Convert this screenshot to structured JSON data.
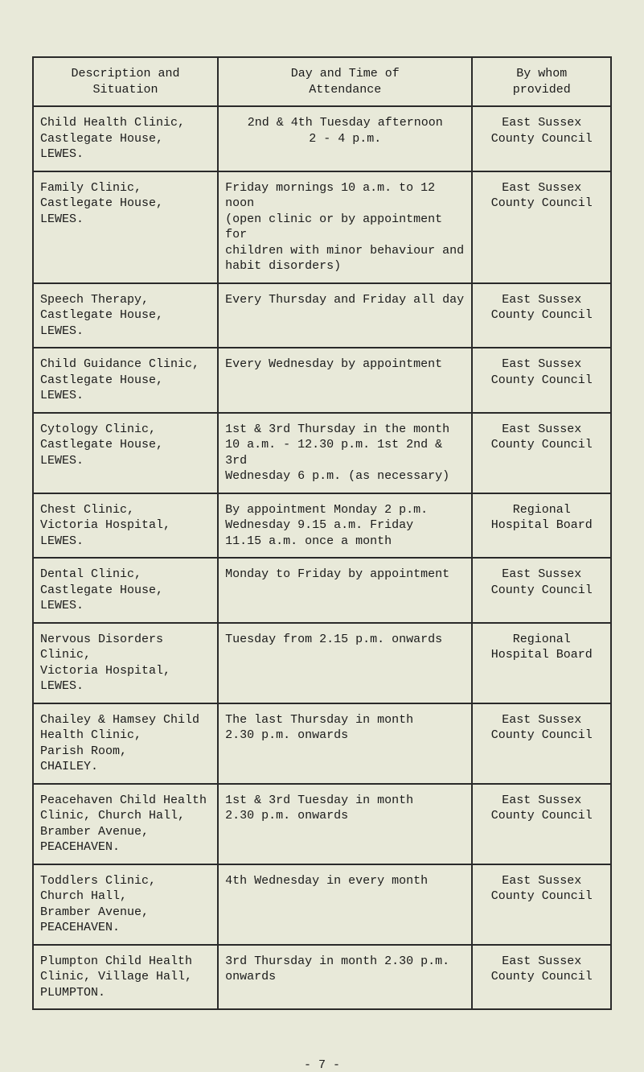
{
  "table": {
    "headers": {
      "description": "Description and\nSituation",
      "daytime": "Day and Time of\nAttendance",
      "bywhom": "By whom\nprovided"
    },
    "rows": [
      {
        "desc": "Child Health Clinic,\nCastlegate House,\nLEWES.",
        "time": "2nd & 4th Tuesday afternoon\n2 - 4 p.m.",
        "who": "East Sussex\nCounty Council",
        "time_align": "center",
        "who_align": "center"
      },
      {
        "desc": "Family Clinic,\nCastlegate House,\nLEWES.",
        "time": "Friday mornings 10 a.m. to 12 noon\n(open clinic or by appointment for\nchildren with minor behaviour and\nhabit disorders)",
        "who": "East Sussex\nCounty Council",
        "time_align": "left",
        "who_align": "center"
      },
      {
        "desc": "Speech Therapy,\nCastlegate House,\nLEWES.",
        "time": "Every Thursday and Friday all day",
        "who": "East Sussex\nCounty Council",
        "time_align": "left",
        "who_align": "center"
      },
      {
        "desc": "Child Guidance Clinic,\nCastlegate House,\nLEWES.",
        "time": "Every Wednesday by appointment",
        "who": "East Sussex\nCounty Council",
        "time_align": "left",
        "who_align": "center"
      },
      {
        "desc": "Cytology Clinic,\nCastlegate House,\nLEWES.",
        "time": "1st & 3rd Thursday in the month\n10 a.m. - 12.30 p.m. 1st 2nd & 3rd\nWednesday 6 p.m. (as necessary)",
        "who": "East Sussex\nCounty Council",
        "time_align": "left",
        "who_align": "center"
      },
      {
        "desc": "Chest Clinic,\nVictoria Hospital,\nLEWES.",
        "time": "By appointment Monday 2 p.m.\nWednesday 9.15 a.m. Friday\n11.15 a.m. once a month",
        "who": "Regional\nHospital Board",
        "time_align": "left",
        "who_align": "center"
      },
      {
        "desc": "Dental Clinic,\nCastlegate House,\nLEWES.",
        "time": "Monday to Friday by appointment",
        "who": "East Sussex\nCounty Council",
        "time_align": "left",
        "who_align": "center"
      },
      {
        "desc": "Nervous Disorders Clinic,\nVictoria Hospital,\nLEWES.",
        "time": "Tuesday from 2.15 p.m. onwards",
        "who": "Regional\nHospital Board",
        "time_align": "left",
        "who_align": "center"
      },
      {
        "desc": "Chailey & Hamsey Child\nHealth Clinic,\nParish Room,\nCHAILEY.",
        "time": "The last Thursday in month\n2.30 p.m. onwards",
        "who": "East Sussex\nCounty Council",
        "time_align": "left",
        "who_align": "center"
      },
      {
        "desc": "Peacehaven Child Health\nClinic, Church Hall,\nBramber Avenue,\nPEACEHAVEN.",
        "time": "1st & 3rd Tuesday in month\n2.30 p.m. onwards",
        "who": "East Sussex\nCounty Council",
        "time_align": "left",
        "who_align": "center"
      },
      {
        "desc": "Toddlers Clinic,\nChurch Hall,\nBramber Avenue,\nPEACEHAVEN.",
        "time": "4th Wednesday in every month",
        "who": "East Sussex\nCounty Council",
        "time_align": "left",
        "who_align": "center"
      },
      {
        "desc": "Plumpton Child Health\nClinic, Village Hall,\nPLUMPTON.",
        "time": "3rd Thursday in month 2.30 p.m.\nonwards",
        "who": "East Sussex\nCounty Council",
        "time_align": "left",
        "who_align": "center"
      }
    ]
  },
  "page_number": "- 7 -",
  "colors": {
    "background": "#e8e9d9",
    "border": "#2a2a2a",
    "text": "#1a1a1a"
  }
}
